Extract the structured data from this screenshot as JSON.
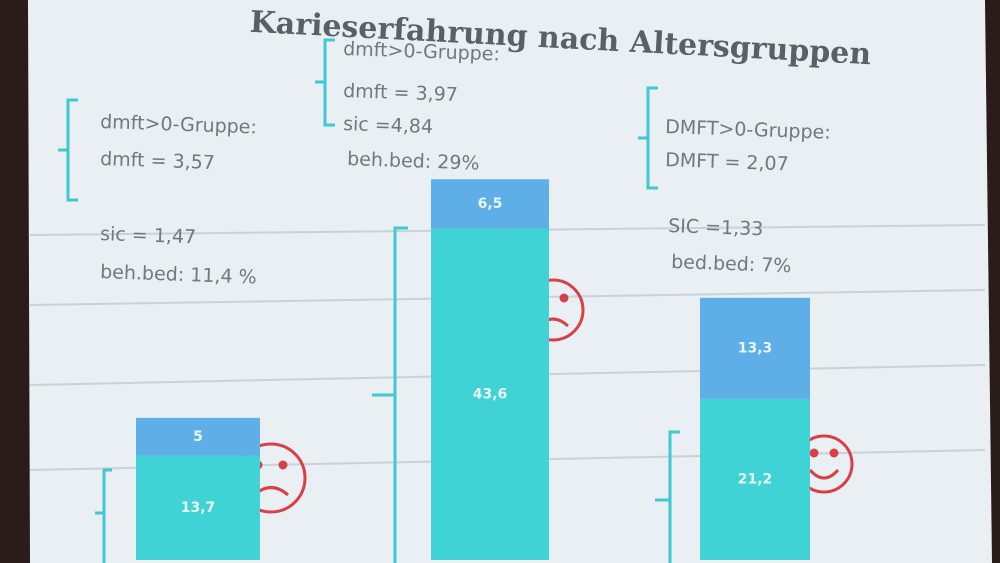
{
  "chart_data": {
    "type": "stacked-bar",
    "title": "Karieserfahrung nach Altersgruppen",
    "categories": [
      null,
      null,
      null
    ],
    "series": [
      {
        "color": "#3fd3d6",
        "values": [
          13.7,
          43.6,
          21.2
        ],
        "value_labels": [
          "13,7",
          "43,6",
          "21,2"
        ]
      },
      {
        "color": "#5eaee8",
        "values": [
          5,
          6.5,
          13.3
        ],
        "value_labels": [
          "5",
          "6,5",
          "13,3"
        ]
      }
    ],
    "annotations": [
      [
        "dmft>0-Gruppe:",
        "dmft = 3,57",
        "sic = 1,47",
        "beh.bed: 11,4 %"
      ],
      [
        "dmft>0-Gruppe:",
        "dmft = 3,97",
        "sic =4,84",
        "beh.bed: 29%"
      ],
      [
        "DMFT>0-Gruppe:",
        "DMFT = 2,07",
        "SIC =1,33",
        "bed.bed: 7%"
      ]
    ]
  }
}
